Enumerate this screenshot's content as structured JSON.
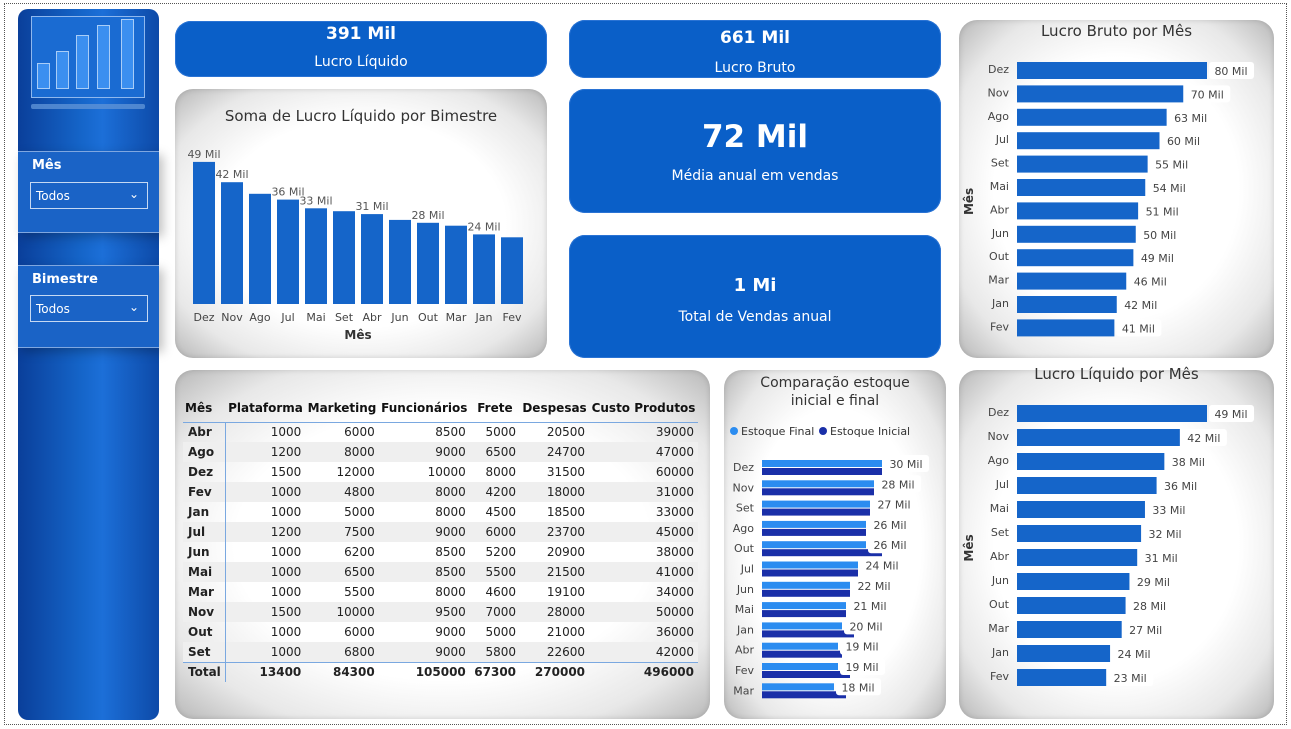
{
  "filters": {
    "month": {
      "label": "Mês",
      "value": "Todos"
    },
    "bimester": {
      "label": "Bimestre",
      "value": "Todos"
    }
  },
  "kpis": {
    "net_profit": {
      "value": "391 Mil",
      "label": "Lucro Líquido"
    },
    "gross_profit": {
      "value": "661 Mil",
      "label": "Lucro Bruto"
    },
    "avg_sales": {
      "value": "72 Mil",
      "label": "Média anual em vendas"
    },
    "total_sales": {
      "value": "1 Mi",
      "label": "Total de Vendas anual"
    }
  },
  "colors": {
    "primary": "#0a5fc8",
    "bar": "#1565c9",
    "inicial": "#1a2fa8",
    "final": "#2b8cf0"
  },
  "chart_data": [
    {
      "type": "bar",
      "title": "Soma de Lucro Líquido por Bimestre",
      "xlabel": "Mês",
      "categories": [
        "Dez",
        "Nov",
        "Ago",
        "Jul",
        "Mai",
        "Set",
        "Abr",
        "Jun",
        "Out",
        "Mar",
        "Jan",
        "Fev"
      ],
      "values": [
        49,
        42,
        38,
        36,
        33,
        32,
        31,
        29,
        28,
        27,
        24,
        23
      ],
      "labels": [
        "49 Mil",
        "42 Mil",
        "",
        "36 Mil",
        "33 Mil",
        "",
        "31 Mil",
        "",
        "28 Mil",
        "",
        "24 Mil",
        ""
      ],
      "ylim": [
        0,
        50
      ]
    },
    {
      "type": "bar",
      "orientation": "horizontal",
      "title": "Lucro Bruto por Mês",
      "ylabel": "Mês",
      "categories": [
        "Dez",
        "Nov",
        "Ago",
        "Jul",
        "Set",
        "Mai",
        "Abr",
        "Jun",
        "Out",
        "Mar",
        "Jan",
        "Fev"
      ],
      "values": [
        80,
        70,
        63,
        60,
        55,
        54,
        51,
        50,
        49,
        46,
        42,
        41
      ],
      "labels": [
        "80 Mil",
        "70 Mil",
        "63 Mil",
        "60 Mil",
        "55 Mil",
        "54 Mil",
        "51 Mil",
        "50 Mil",
        "49 Mil",
        "46 Mil",
        "42 Mil",
        "41 Mil"
      ]
    },
    {
      "type": "bar",
      "orientation": "horizontal",
      "title": "Lucro Líquido por Mês",
      "ylabel": "Mês",
      "categories": [
        "Dez",
        "Nov",
        "Ago",
        "Jul",
        "Mai",
        "Set",
        "Abr",
        "Jun",
        "Out",
        "Mar",
        "Jan",
        "Fev"
      ],
      "values": [
        49,
        42,
        38,
        36,
        33,
        32,
        31,
        29,
        28,
        27,
        24,
        23
      ],
      "labels": [
        "49 Mil",
        "42 Mil",
        "38 Mil",
        "36 Mil",
        "33 Mil",
        "32 Mil",
        "31 Mil",
        "29 Mil",
        "28 Mil",
        "27 Mil",
        "24 Mil",
        "23 Mil"
      ]
    },
    {
      "type": "bar",
      "orientation": "horizontal",
      "title": "Comparação estoque inicial e final",
      "legend": "top-left",
      "categories": [
        "Dez",
        "Nov",
        "Set",
        "Ago",
        "Out",
        "Jul",
        "Jun",
        "Mai",
        "Jan",
        "Abr",
        "Fev",
        "Mar"
      ],
      "series": [
        {
          "name": "Estoque Final",
          "values": [
            30,
            28,
            27,
            26,
            26,
            24,
            22,
            21,
            20,
            19,
            19,
            18
          ]
        },
        {
          "name": "Estoque Inicial",
          "values": [
            30,
            28,
            27,
            26,
            30,
            24,
            22,
            21,
            23,
            20,
            22,
            21
          ]
        }
      ],
      "labels": [
        "30 Mil",
        "28 Mil",
        "27 Mil",
        "26 Mil",
        "26 Mil",
        "24 Mil",
        "22 Mil",
        "21 Mil",
        "20 Mil",
        "19 Mil",
        "19 Mil",
        "18 Mil"
      ]
    },
    {
      "type": "table",
      "columns": [
        "Mês",
        "Plataforma",
        "Marketing",
        "Funcionários",
        "Frete",
        "Despesas",
        "Custo Produtos"
      ],
      "rows": [
        [
          "Abr",
          "1000",
          "6000",
          "8500",
          "5000",
          "20500",
          "39000"
        ],
        [
          "Ago",
          "1200",
          "8000",
          "9000",
          "6500",
          "24700",
          "47000"
        ],
        [
          "Dez",
          "1500",
          "12000",
          "10000",
          "8000",
          "31500",
          "60000"
        ],
        [
          "Fev",
          "1000",
          "4800",
          "8000",
          "4200",
          "18000",
          "31000"
        ],
        [
          "Jan",
          "1000",
          "5000",
          "8000",
          "4500",
          "18500",
          "33000"
        ],
        [
          "Jul",
          "1200",
          "7500",
          "9000",
          "6000",
          "23700",
          "45000"
        ],
        [
          "Jun",
          "1000",
          "6200",
          "8500",
          "5200",
          "20900",
          "38000"
        ],
        [
          "Mai",
          "1000",
          "6500",
          "8500",
          "5500",
          "21500",
          "41000"
        ],
        [
          "Mar",
          "1000",
          "5500",
          "8000",
          "4600",
          "19100",
          "34000"
        ],
        [
          "Nov",
          "1500",
          "10000",
          "9500",
          "7000",
          "28000",
          "50000"
        ],
        [
          "Out",
          "1000",
          "6000",
          "9000",
          "5000",
          "21000",
          "36000"
        ],
        [
          "Set",
          "1000",
          "6800",
          "9000",
          "5800",
          "22600",
          "42000"
        ]
      ],
      "total": [
        "Total",
        "13400",
        "84300",
        "105000",
        "67300",
        "270000",
        "496000"
      ]
    }
  ]
}
